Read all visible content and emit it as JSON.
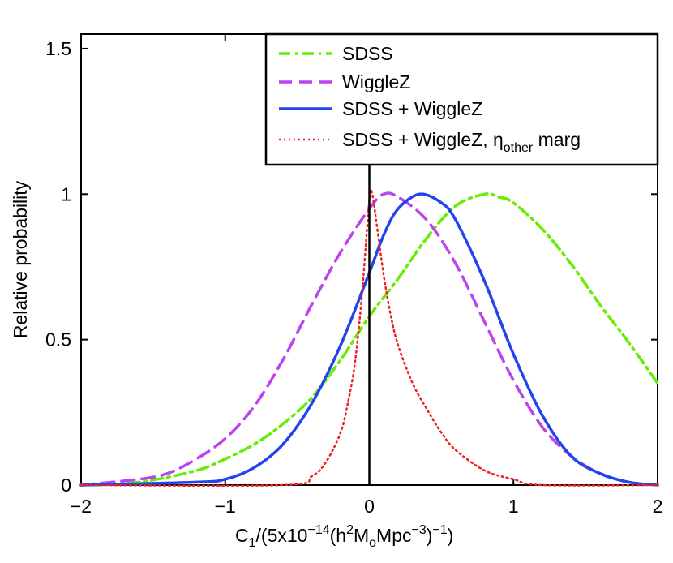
{
  "chart_data": {
    "type": "line",
    "title": "",
    "xlabel": {
      "main": "C",
      "sub1": "1",
      "pre": "/(5x10",
      "sup1": "−14",
      "mid": "(h",
      "sup2": "2",
      "m": "M",
      "sub2": "o",
      "post": "Mpc",
      "sup3": "−3",
      "end": ")",
      "sup4": "−1",
      "close": ")"
    },
    "ylabel": "Relative probability",
    "xlim": [
      -2,
      2
    ],
    "ylim": [
      0,
      1.55
    ],
    "xticks": [
      -2,
      -1,
      0,
      1,
      2
    ],
    "xtick_labels": [
      "−2",
      "−1",
      "0",
      "1",
      "2"
    ],
    "yticks": [
      0,
      0.5,
      1,
      1.5
    ],
    "ytick_labels": [
      "0",
      "0.5",
      "1",
      "1.5"
    ],
    "vertical_line_x": 0,
    "legend_position": "top-right",
    "series": [
      {
        "name": "SDSS",
        "color": "#66ee00",
        "style": "dash-dot",
        "x": [
          -2.0,
          -1.6,
          -1.2,
          -1.0,
          -0.8,
          -0.6,
          -0.4,
          -0.2,
          0.0,
          0.2,
          0.4,
          0.6,
          0.8,
          0.9,
          1.0,
          1.2,
          1.4,
          1.6,
          1.8,
          2.0
        ],
        "y": [
          0.0,
          0.01,
          0.05,
          0.09,
          0.14,
          0.21,
          0.3,
          0.43,
          0.58,
          0.71,
          0.85,
          0.96,
          1.0,
          0.99,
          0.97,
          0.88,
          0.76,
          0.62,
          0.49,
          0.35
        ]
      },
      {
        "name": "WiggleZ",
        "color": "#bb44ee",
        "style": "dashed",
        "x": [
          -2.0,
          -1.6,
          -1.4,
          -1.2,
          -1.0,
          -0.8,
          -0.6,
          -0.4,
          -0.2,
          0.0,
          0.1,
          0.2,
          0.4,
          0.6,
          0.8,
          1.0,
          1.2,
          1.4,
          1.6,
          1.8,
          2.0
        ],
        "y": [
          0.0,
          0.02,
          0.04,
          0.09,
          0.16,
          0.27,
          0.43,
          0.62,
          0.8,
          0.95,
          1.0,
          0.99,
          0.91,
          0.76,
          0.56,
          0.36,
          0.2,
          0.1,
          0.04,
          0.01,
          0.0
        ]
      },
      {
        "name": "SDSS + WiggleZ",
        "color": "#2244ee",
        "style": "solid",
        "x": [
          -2.0,
          -1.2,
          -1.0,
          -0.8,
          -0.6,
          -0.4,
          -0.2,
          0.0,
          0.1,
          0.2,
          0.35,
          0.5,
          0.6,
          0.8,
          1.0,
          1.2,
          1.4,
          1.6,
          1.8,
          2.0
        ],
        "y": [
          0.0,
          0.01,
          0.02,
          0.06,
          0.14,
          0.28,
          0.48,
          0.73,
          0.86,
          0.95,
          1.0,
          0.97,
          0.91,
          0.7,
          0.45,
          0.24,
          0.1,
          0.04,
          0.01,
          0.0
        ]
      },
      {
        "name": "SDSS + WiggleZ, η",
        "name_sub": "other",
        "name_post": " marg",
        "color": "#ee2222",
        "style": "dotted",
        "x": [
          -2.0,
          -0.6,
          -0.4,
          -0.3,
          -0.2,
          -0.15,
          -0.1,
          -0.05,
          0.0,
          0.02,
          0.05,
          0.1,
          0.15,
          0.2,
          0.3,
          0.4,
          0.5,
          0.6,
          0.8,
          1.0,
          1.2,
          2.0
        ],
        "y": [
          0.0,
          0.0,
          0.03,
          0.08,
          0.18,
          0.28,
          0.42,
          0.66,
          0.98,
          1.0,
          0.9,
          0.72,
          0.58,
          0.48,
          0.35,
          0.26,
          0.18,
          0.12,
          0.05,
          0.02,
          0.0,
          0.0
        ]
      }
    ]
  }
}
